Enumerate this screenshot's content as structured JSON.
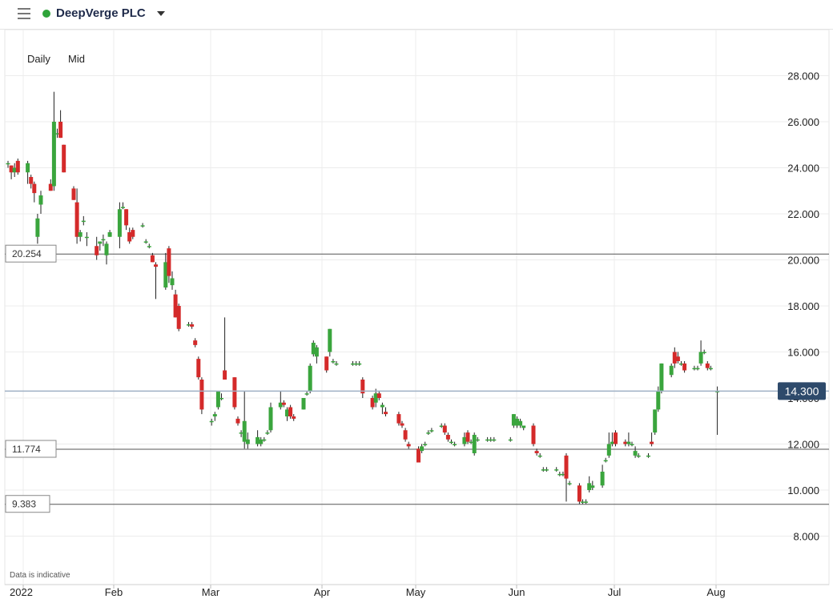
{
  "header": {
    "instrument": "DeepVerge PLC",
    "status_color": "#2fa43a"
  },
  "toolbar": {
    "period": "Daily",
    "price_type": "Mid"
  },
  "disclaimer": "Data is indicative",
  "colors": {
    "up": "#3aa53d",
    "down": "#d42a2a",
    "current": "#2e4a6b"
  },
  "chart_data": {
    "type": "candlestick",
    "y_axis": {
      "min": 7,
      "max": 29,
      "ticks": [
        28,
        26,
        24,
        22,
        20,
        18,
        16,
        14,
        12,
        10,
        8
      ],
      "label_format": "0.000",
      "position": "right"
    },
    "x_axis": {
      "labels": [
        "2022",
        "Feb",
        "Mar",
        "Apr",
        "May",
        "Jun",
        "Jul",
        "Aug"
      ],
      "start": "2022-01-04",
      "end": "2022-08-08"
    },
    "grid": true,
    "horizontal_levels": [
      {
        "value": 20.254,
        "label": "20.254"
      },
      {
        "value": 11.774,
        "label": "11.774"
      },
      {
        "value": 9.383,
        "label": "9.383"
      }
    ],
    "current_price": {
      "value": 14.3,
      "label": "14.300"
    },
    "candles": [
      [
        "2022-01-04",
        24.2,
        24.3,
        24.0,
        24.2
      ],
      [
        "2022-01-05",
        24.1,
        24.1,
        23.5,
        23.8
      ],
      [
        "2022-01-06",
        23.8,
        24.2,
        23.6,
        24.0
      ],
      [
        "2022-01-07",
        24.3,
        24.4,
        23.7,
        23.8
      ],
      [
        "2022-01-10",
        23.8,
        24.3,
        23.3,
        24.2
      ],
      [
        "2022-01-11",
        23.6,
        23.7,
        23.1,
        23.3
      ],
      [
        "2022-01-12",
        23.3,
        23.4,
        22.5,
        22.9
      ],
      [
        "2022-01-13",
        21.0,
        22.0,
        20.7,
        21.8
      ],
      [
        "2022-01-14",
        22.4,
        23.0,
        22.0,
        22.8
      ],
      [
        "2022-01-17",
        23.3,
        23.5,
        23.0,
        23.0
      ],
      [
        "2022-01-18",
        23.2,
        27.3,
        23.0,
        26.0
      ],
      [
        "2022-01-19",
        25.5,
        25.7,
        25.3,
        25.5
      ],
      [
        "2022-01-20",
        26.0,
        26.5,
        25.3,
        25.3
      ],
      [
        "2022-01-21",
        25.0,
        25.0,
        23.8,
        23.8
      ],
      [
        "2022-01-24",
        23.1,
        23.2,
        22.6,
        22.6
      ],
      [
        "2022-01-25",
        22.5,
        23.1,
        20.7,
        21.0
      ],
      [
        "2022-01-26",
        21.0,
        21.3,
        20.8,
        21.2
      ],
      [
        "2022-01-27",
        21.7,
        21.9,
        21.5,
        21.7
      ],
      [
        "2022-01-28",
        21.0,
        21.2,
        20.6,
        21.0
      ],
      [
        "2022-01-31",
        20.6,
        21.0,
        20.0,
        20.2
      ],
      [
        "2022-02-01",
        20.7,
        20.8,
        20.4,
        20.8
      ],
      [
        "2022-02-02",
        20.9,
        21.1,
        20.6,
        20.9
      ],
      [
        "2022-02-03",
        20.2,
        20.8,
        19.8,
        20.7
      ],
      [
        "2022-02-04",
        21.0,
        21.3,
        21.0,
        21.2
      ],
      [
        "2022-02-07",
        21.0,
        22.5,
        20.5,
        22.2
      ],
      [
        "2022-02-08",
        22.3,
        22.5,
        22.2,
        22.3
      ],
      [
        "2022-02-09",
        22.2,
        22.2,
        21.3,
        21.5
      ],
      [
        "2022-02-10",
        21.2,
        21.4,
        20.7,
        20.8
      ],
      [
        "2022-02-11",
        21.3,
        21.4,
        20.9,
        21.0
      ],
      [
        "2022-02-14",
        21.5,
        21.6,
        21.4,
        21.5
      ],
      [
        "2022-02-15",
        20.8,
        20.9,
        20.7,
        20.8
      ],
      [
        "2022-02-16",
        20.6,
        20.7,
        20.5,
        20.6
      ],
      [
        "2022-02-17",
        20.2,
        20.3,
        19.9,
        19.9
      ],
      [
        "2022-02-18",
        19.8,
        19.9,
        18.3,
        19.7
      ],
      [
        "2022-02-21",
        18.8,
        20.3,
        18.7,
        19.9
      ],
      [
        "2022-02-22",
        20.5,
        20.6,
        19.0,
        19.3
      ],
      [
        "2022-02-23",
        18.9,
        19.5,
        18.7,
        19.2
      ],
      [
        "2022-02-24",
        18.5,
        18.7,
        17.5,
        17.5
      ],
      [
        "2022-02-25",
        18.0,
        18.1,
        16.9,
        17.0
      ],
      [
        "2022-02-28",
        17.2,
        17.3,
        17.1,
        17.2
      ],
      [
        "2022-03-01",
        17.2,
        17.3,
        17.0,
        17.1
      ],
      [
        "2022-03-02",
        16.5,
        16.6,
        16.2,
        16.3
      ],
      [
        "2022-03-03",
        15.7,
        15.8,
        14.8,
        14.9
      ],
      [
        "2022-03-04",
        14.8,
        14.9,
        13.3,
        13.5
      ],
      [
        "2022-03-07",
        13.0,
        13.1,
        12.8,
        13.0
      ],
      [
        "2022-03-08",
        13.2,
        13.4,
        13.0,
        13.3
      ],
      [
        "2022-03-09",
        13.6,
        14.3,
        13.5,
        14.3
      ],
      [
        "2022-03-10",
        14.0,
        14.2,
        13.9,
        14.0
      ],
      [
        "2022-03-11",
        15.2,
        17.5,
        15.0,
        14.8
      ],
      [
        "2022-03-14",
        14.9,
        14.9,
        13.5,
        13.6
      ],
      [
        "2022-03-15",
        13.1,
        13.2,
        12.8,
        12.9
      ],
      [
        "2022-03-16",
        12.5,
        12.6,
        12.3,
        12.5
      ],
      [
        "2022-03-17",
        12.1,
        14.3,
        11.8,
        13.0
      ],
      [
        "2022-03-18",
        12.0,
        12.5,
        11.8,
        12.2
      ],
      [
        "2022-03-21",
        12.0,
        12.6,
        11.9,
        12.3
      ],
      [
        "2022-03-22",
        12.0,
        12.3,
        11.9,
        12.2
      ],
      [
        "2022-03-23",
        12.2,
        12.3,
        12.1,
        12.2
      ],
      [
        "2022-03-24",
        12.5,
        12.6,
        12.4,
        12.5
      ],
      [
        "2022-03-25",
        12.6,
        13.8,
        12.5,
        13.6
      ],
      [
        "2022-03-28",
        13.6,
        14.3,
        13.5,
        13.8
      ],
      [
        "2022-03-29",
        13.8,
        13.9,
        13.6,
        13.7
      ],
      [
        "2022-03-30",
        13.2,
        13.6,
        13.0,
        13.5
      ],
      [
        "2022-03-31",
        13.6,
        13.7,
        13.1,
        13.2
      ],
      [
        "2022-04-01",
        13.2,
        13.3,
        13.0,
        13.1
      ],
      [
        "2022-04-04",
        13.5,
        14.0,
        13.5,
        14.0
      ],
      [
        "2022-04-05",
        14.2,
        14.3,
        14.1,
        14.2
      ],
      [
        "2022-04-06",
        14.3,
        15.5,
        14.2,
        15.4
      ],
      [
        "2022-04-07",
        15.9,
        16.5,
        15.8,
        16.4
      ],
      [
        "2022-04-08",
        15.8,
        16.3,
        15.5,
        16.2
      ],
      [
        "2022-04-11",
        15.8,
        15.8,
        15.1,
        15.2
      ],
      [
        "2022-04-12",
        16.0,
        17.0,
        15.8,
        17.0
      ],
      [
        "2022-04-13",
        15.6,
        15.7,
        15.5,
        15.6
      ],
      [
        "2022-04-14",
        15.5,
        15.6,
        15.4,
        15.5
      ],
      [
        "2022-04-19",
        15.5,
        15.6,
        15.4,
        15.5
      ],
      [
        "2022-04-20",
        15.5,
        15.6,
        15.4,
        15.5
      ],
      [
        "2022-04-21",
        15.5,
        15.6,
        15.4,
        15.5
      ],
      [
        "2022-04-22",
        14.8,
        14.9,
        14.0,
        14.2
      ],
      [
        "2022-04-25",
        14.0,
        14.1,
        13.5,
        13.6
      ],
      [
        "2022-04-26",
        13.8,
        14.4,
        13.6,
        14.2
      ],
      [
        "2022-04-27",
        14.2,
        14.3,
        13.9,
        14.0
      ],
      [
        "2022-04-28",
        13.6,
        13.8,
        13.3,
        13.7
      ],
      [
        "2022-04-29",
        13.4,
        13.6,
        13.2,
        13.3
      ],
      [
        "2022-05-03",
        13.3,
        13.4,
        12.8,
        12.9
      ],
      [
        "2022-05-04",
        12.9,
        13.0,
        12.7,
        12.8
      ],
      [
        "2022-05-05",
        12.6,
        12.7,
        12.1,
        12.2
      ],
      [
        "2022-05-06",
        12.0,
        12.1,
        11.8,
        11.9
      ],
      [
        "2022-05-09",
        11.8,
        11.9,
        11.2,
        11.2
      ],
      [
        "2022-05-10",
        11.7,
        12.0,
        11.6,
        11.9
      ],
      [
        "2022-05-11",
        12.0,
        12.1,
        11.9,
        12.0
      ],
      [
        "2022-05-12",
        12.5,
        12.6,
        12.4,
        12.5
      ],
      [
        "2022-05-13",
        12.6,
        12.7,
        12.5,
        12.6
      ],
      [
        "2022-05-16",
        12.8,
        12.9,
        12.7,
        12.8
      ],
      [
        "2022-05-17",
        12.8,
        12.9,
        12.4,
        12.5
      ],
      [
        "2022-05-18",
        12.4,
        12.5,
        12.1,
        12.2
      ],
      [
        "2022-05-19",
        12.1,
        12.2,
        12.0,
        12.1
      ],
      [
        "2022-05-20",
        12.0,
        12.1,
        11.9,
        12.0
      ],
      [
        "2022-05-23",
        12.0,
        12.5,
        11.9,
        12.3
      ],
      [
        "2022-05-24",
        12.5,
        12.6,
        12.0,
        12.1
      ],
      [
        "2022-05-25",
        12.1,
        12.2,
        12.0,
        12.1
      ],
      [
        "2022-05-26",
        11.6,
        12.5,
        11.5,
        12.4
      ],
      [
        "2022-05-27",
        12.2,
        12.3,
        12.1,
        12.2
      ],
      [
        "2022-05-30",
        12.2,
        12.3,
        12.1,
        12.2
      ],
      [
        "2022-05-31",
        12.2,
        12.3,
        12.1,
        12.2
      ],
      [
        "2022-06-01",
        12.2,
        12.3,
        12.1,
        12.2
      ],
      [
        "2022-06-06",
        12.2,
        12.3,
        12.1,
        12.2
      ],
      [
        "2022-06-07",
        12.8,
        13.3,
        12.7,
        13.3
      ],
      [
        "2022-06-08",
        12.8,
        13.2,
        12.7,
        13.1
      ],
      [
        "2022-06-09",
        12.8,
        13.1,
        12.7,
        13.0
      ],
      [
        "2022-06-10",
        12.7,
        12.8,
        12.6,
        12.8
      ],
      [
        "2022-06-13",
        12.8,
        12.9,
        11.9,
        12.0
      ],
      [
        "2022-06-14",
        11.7,
        11.8,
        11.5,
        11.6
      ],
      [
        "2022-06-15",
        11.5,
        11.6,
        11.4,
        11.5
      ],
      [
        "2022-06-16",
        10.9,
        11.0,
        10.8,
        10.9
      ],
      [
        "2022-06-17",
        10.9,
        11.0,
        10.8,
        10.9
      ],
      [
        "2022-06-20",
        10.9,
        11.0,
        10.8,
        10.9
      ],
      [
        "2022-06-21",
        10.7,
        10.8,
        10.6,
        10.7
      ],
      [
        "2022-06-22",
        10.7,
        10.8,
        10.6,
        10.7
      ],
      [
        "2022-06-23",
        11.5,
        11.6,
        9.5,
        10.5
      ],
      [
        "2022-06-24",
        10.3,
        10.4,
        10.2,
        10.3
      ],
      [
        "2022-06-27",
        10.2,
        10.3,
        9.4,
        9.5
      ],
      [
        "2022-06-28",
        9.5,
        9.6,
        9.4,
        9.5
      ],
      [
        "2022-06-29",
        9.5,
        9.6,
        9.4,
        9.5
      ],
      [
        "2022-06-30",
        10.0,
        10.6,
        9.9,
        10.3
      ],
      [
        "2022-07-01",
        10.1,
        10.4,
        10.0,
        10.2
      ],
      [
        "2022-07-04",
        10.2,
        11.1,
        10.1,
        10.8
      ],
      [
        "2022-07-05",
        11.3,
        11.4,
        11.2,
        11.3
      ],
      [
        "2022-07-06",
        11.5,
        12.5,
        11.4,
        12.0
      ],
      [
        "2022-07-07",
        12.0,
        12.5,
        11.9,
        12.1
      ],
      [
        "2022-07-08",
        12.5,
        12.6,
        11.9,
        12.0
      ],
      [
        "2022-07-11",
        12.1,
        12.2,
        11.9,
        12.0
      ],
      [
        "2022-07-12",
        12.0,
        12.5,
        11.9,
        12.1
      ],
      [
        "2022-07-13",
        12.0,
        12.1,
        11.9,
        12.0
      ],
      [
        "2022-07-14",
        11.5,
        11.9,
        11.4,
        11.7
      ],
      [
        "2022-07-15",
        11.5,
        11.6,
        11.4,
        11.5
      ],
      [
        "2022-07-18",
        11.5,
        11.6,
        11.4,
        11.5
      ],
      [
        "2022-07-19",
        12.1,
        12.5,
        11.9,
        12.0
      ],
      [
        "2022-07-20",
        12.5,
        13.5,
        12.4,
        13.5
      ],
      [
        "2022-07-21",
        13.5,
        14.5,
        13.4,
        14.3
      ],
      [
        "2022-07-22",
        14.3,
        15.5,
        14.2,
        15.5
      ],
      [
        "2022-07-25",
        15.0,
        15.5,
        14.9,
        15.4
      ],
      [
        "2022-07-26",
        16.0,
        16.2,
        15.3,
        15.5
      ],
      [
        "2022-07-27",
        15.8,
        16.0,
        15.5,
        15.6
      ],
      [
        "2022-07-28",
        15.5,
        15.6,
        15.4,
        15.5
      ],
      [
        "2022-07-29",
        15.5,
        15.6,
        15.1,
        15.2
      ],
      [
        "2022-08-01",
        15.3,
        15.4,
        15.2,
        15.3
      ],
      [
        "2022-08-02",
        15.3,
        15.4,
        15.2,
        15.3
      ],
      [
        "2022-08-03",
        15.5,
        16.5,
        15.4,
        16.0
      ],
      [
        "2022-08-04",
        16.0,
        16.1,
        15.9,
        16.0
      ],
      [
        "2022-08-05",
        15.5,
        15.6,
        15.2,
        15.3
      ],
      [
        "2022-08-06",
        15.3,
        15.4,
        15.2,
        15.3
      ],
      [
        "2022-08-08",
        14.3,
        14.5,
        12.4,
        14.3
      ]
    ]
  }
}
